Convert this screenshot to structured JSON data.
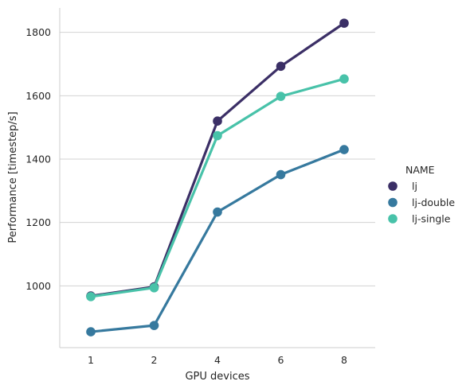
{
  "chart_data": {
    "type": "line",
    "title": "",
    "xlabel": "GPU devices",
    "ylabel": "Performance [timestep/s]",
    "categories": [
      "1",
      "2",
      "4",
      "6",
      "8"
    ],
    "ylim": [
      805,
      1877
    ],
    "yticks": [
      1000,
      1200,
      1400,
      1600,
      1800
    ],
    "grid": "horizontal",
    "legend": {
      "title": "NAME",
      "placement": "right"
    },
    "series": [
      {
        "name": "lj",
        "color": "#3b2f66",
        "values": [
          968,
          997,
          1520,
          1693,
          1829
        ]
      },
      {
        "name": "lj-double",
        "color": "#36799e",
        "values": [
          855,
          875,
          1233,
          1351,
          1430
        ]
      },
      {
        "name": "lj-single",
        "color": "#48c2a9",
        "values": [
          966,
          994,
          1474,
          1598,
          1653
        ]
      }
    ]
  }
}
